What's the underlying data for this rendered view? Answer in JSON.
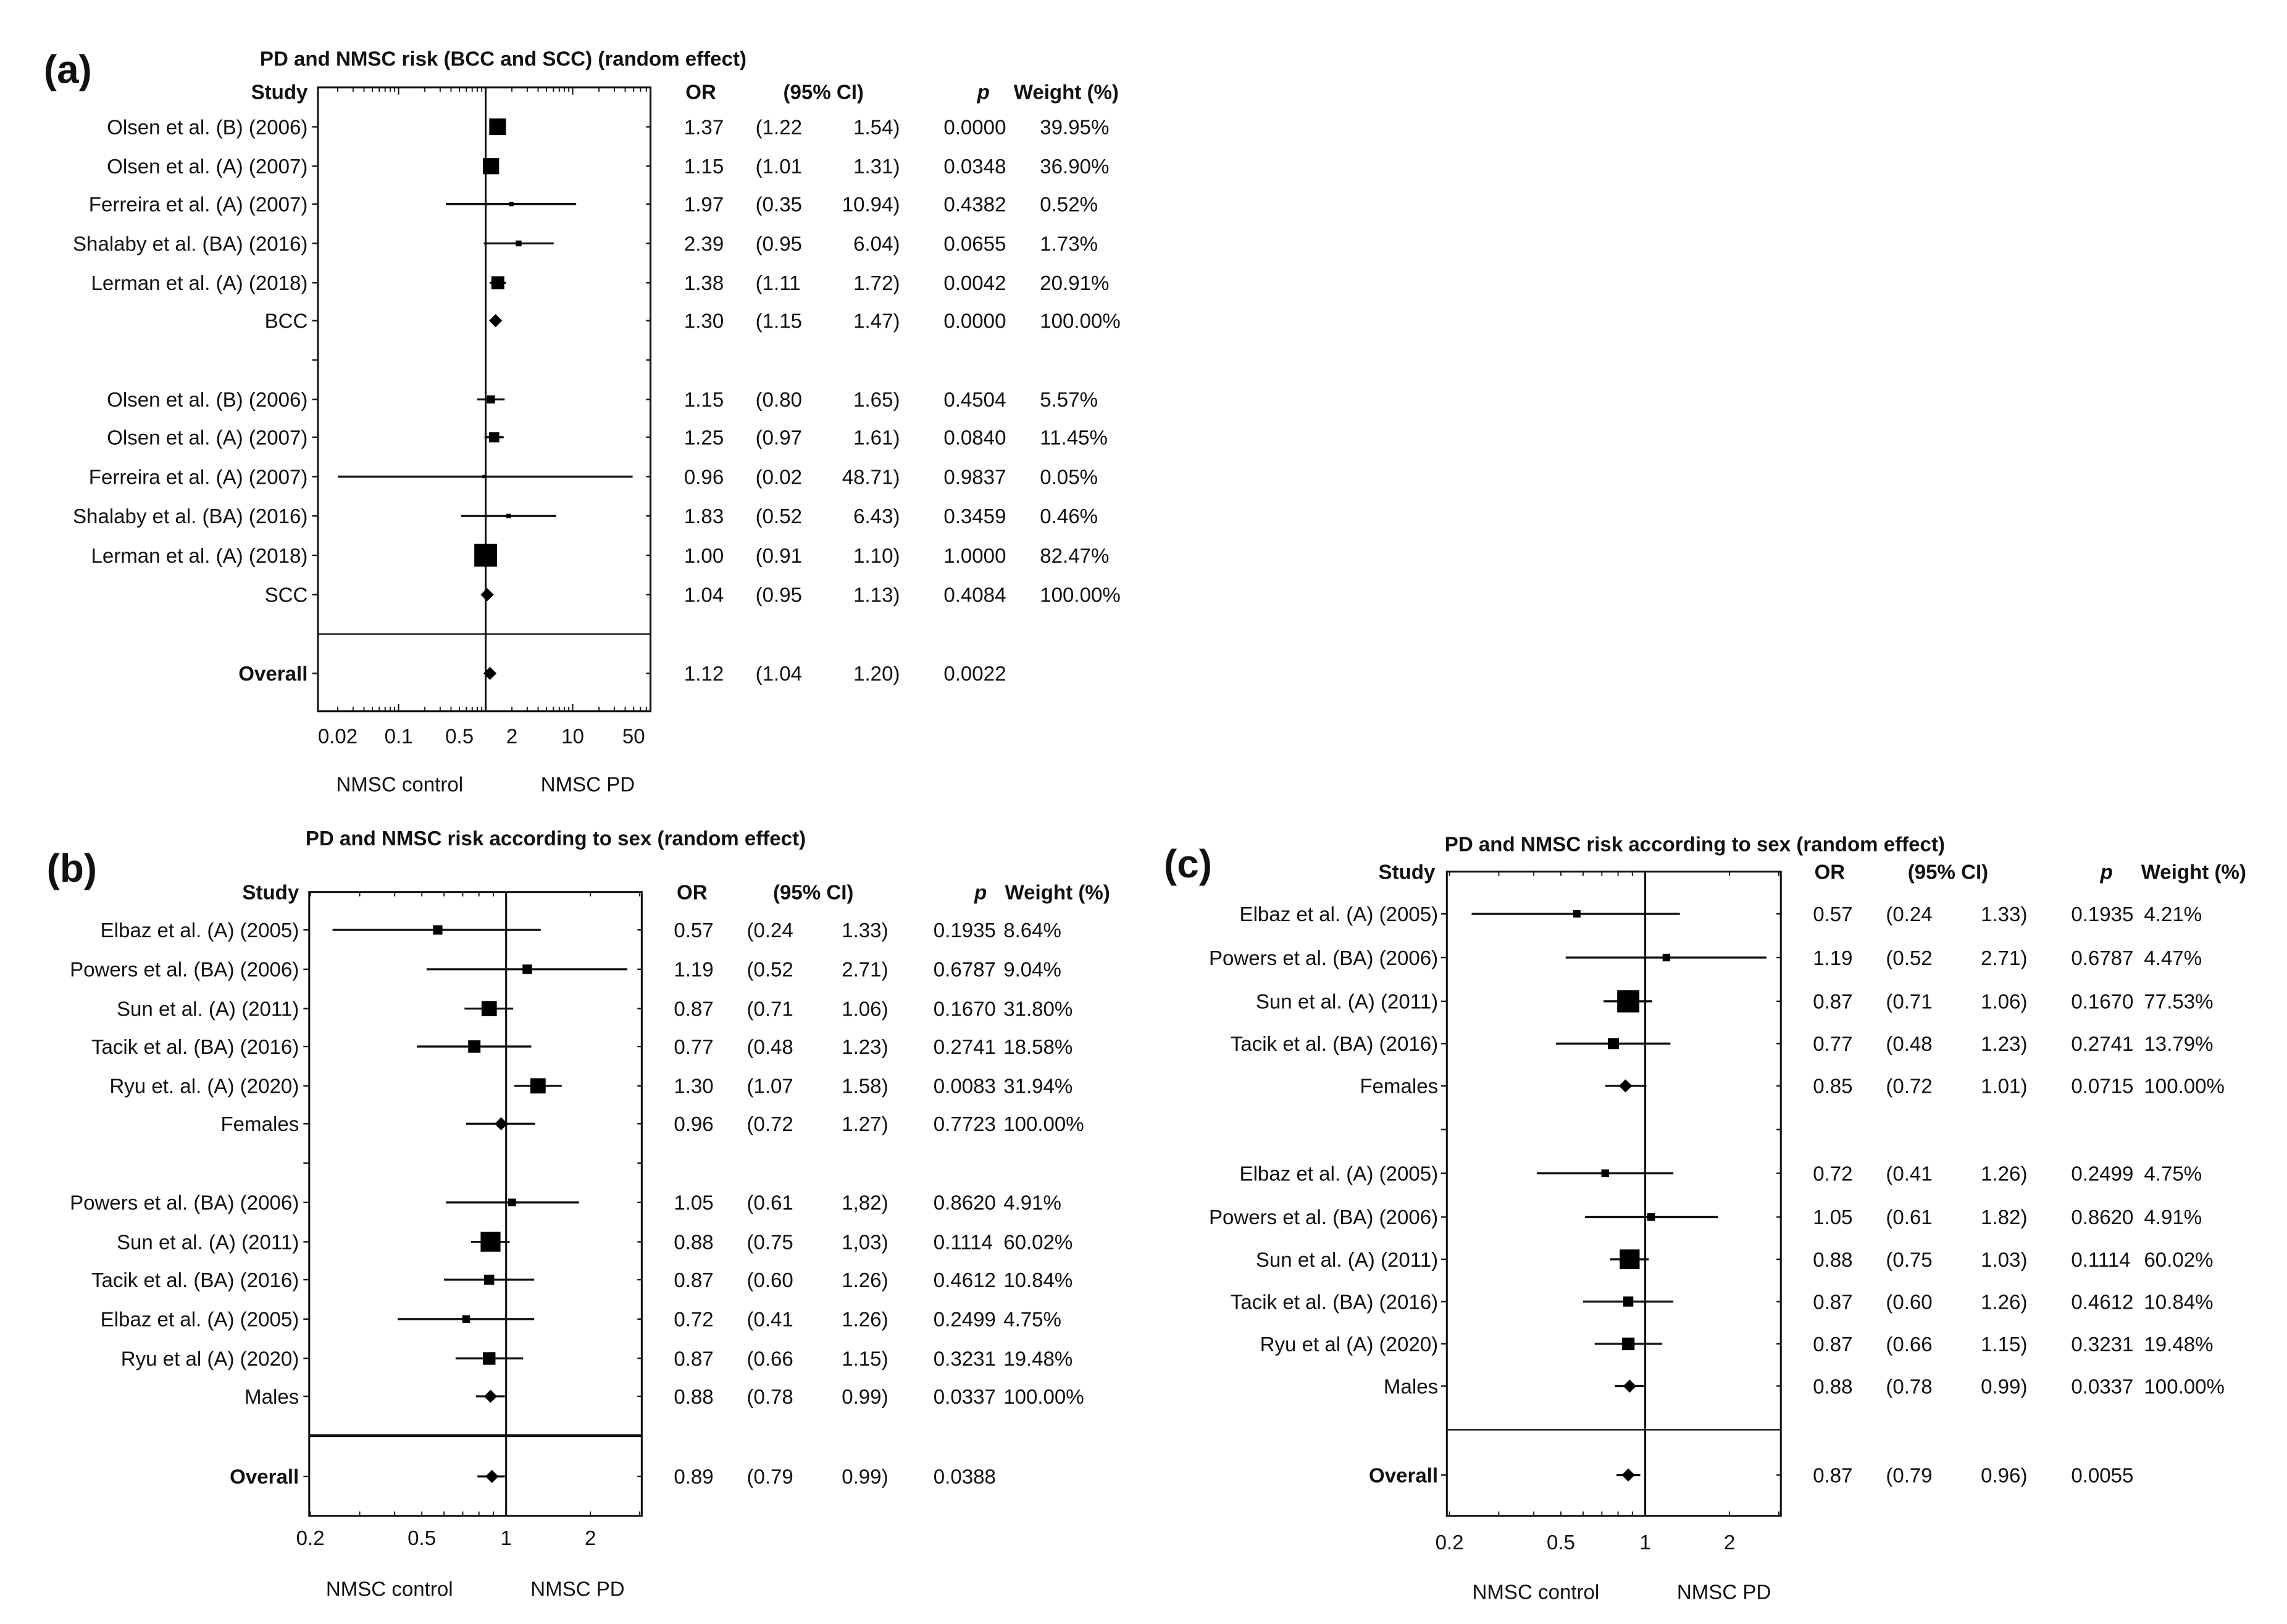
{
  "chart_data": [
    {
      "type": "forest",
      "panel_label": "(a)",
      "title": "PD and NMSC risk (BCC and SCC) (random effect)",
      "headers": {
        "study": "Study",
        "or": "OR",
        "ci": "(95% CI)",
        "p": "p",
        "weight": "Weight (%)"
      },
      "xscale": "log",
      "xlim": [
        0.012,
        80
      ],
      "ticks": [
        "0.02",
        "0.1",
        "0.5",
        "2",
        "10",
        "50"
      ],
      "footer": {
        "left": "NMSC control",
        "right": "NMSC PD"
      },
      "rows": [
        {
          "study": "Olsen et al. (B) (2006)",
          "or": "1.37",
          "lo": "1.22",
          "hi": "1.54",
          "p": "0.0000",
          "weight": "39.95%",
          "kind": "study"
        },
        {
          "study": "Olsen et al. (A) (2007)",
          "or": "1.15",
          "lo": "1.01",
          "hi": "1.31",
          "p": "0.0348",
          "weight": "36.90%",
          "kind": "study"
        },
        {
          "study": "Ferreira et al. (A)  (2007)",
          "or": "1.97",
          "lo": "0.35",
          "hi": "10.94",
          "p": "0.4382",
          "weight": "0.52%",
          "kind": "study"
        },
        {
          "study": "Shalaby et al. (BA) (2016)",
          "or": "2.39",
          "lo": "0.95",
          "hi": "6.04",
          "p": "0.0655",
          "weight": "1.73%",
          "kind": "study"
        },
        {
          "study": "Lerman et al. (A) (2018)",
          "or": "1.38",
          "lo": "1.11",
          "hi": "1.72",
          "p": "0.0042",
          "weight": "20.91%",
          "kind": "study"
        },
        {
          "study": "BCC",
          "or": "1.30",
          "lo": "1.15",
          "hi": "1.47",
          "p": "0.0000",
          "weight": "100.00%",
          "kind": "summary"
        },
        {
          "study": "Olsen et al. (B) (2006)",
          "or": "1.15",
          "lo": "0.80",
          "hi": "1.65",
          "p": "0.4504",
          "weight": "5.57%",
          "kind": "study"
        },
        {
          "study": "Olsen et al. (A) (2007)",
          "or": "1.25",
          "lo": "0.97",
          "hi": "1.61",
          "p": "0.0840",
          "weight": "11.45%",
          "kind": "study"
        },
        {
          "study": "Ferreira et al. (A) (2007)",
          "or": "0.96",
          "lo": "0.02",
          "hi": "48.71",
          "p": "0.9837",
          "weight": "0.05%",
          "kind": "study"
        },
        {
          "study": "Shalaby et al. (BA) (2016)",
          "or": "1.83",
          "lo": "0.52",
          "hi": "6.43",
          "p": "0.3459",
          "weight": "0.46%",
          "kind": "study"
        },
        {
          "study": "Lerman et al. (A) (2018)",
          "or": "1.00",
          "lo": "0.91",
          "hi": "1.10",
          "p": "1.0000",
          "weight": "82.47%",
          "kind": "study"
        },
        {
          "study": "SCC",
          "or": "1.04",
          "lo": "0.95",
          "hi": "1.13",
          "p": "0.4084",
          "weight": "100.00%",
          "kind": "summary"
        },
        {
          "study": "Overall",
          "or": "1.12",
          "lo": "1.04",
          "hi": "1.20",
          "p": "0.0022",
          "weight": "",
          "kind": "overall"
        }
      ]
    },
    {
      "type": "forest",
      "panel_label": "(b)",
      "title": "PD and NMSC risk according to sex (random effect)",
      "headers": {
        "study": "Study",
        "or": "OR",
        "ci": "(95% CI)",
        "p": "p",
        "weight": "Weight (%)"
      },
      "xscale": "log",
      "xlim": [
        0.2,
        3.05
      ],
      "ticks": [
        "0.2",
        "0.5",
        "1",
        "2"
      ],
      "footer": {
        "left": "NMSC control",
        "right": "NMSC PD"
      },
      "rows": [
        {
          "study": "Elbaz et al. (A) (2005)",
          "or": "0.57",
          "lo": "0.24",
          "hi": "1.33",
          "p": "0.1935",
          "weight": "8.64%",
          "kind": "study"
        },
        {
          "study": "Powers et al. (BA) (2006)",
          "or": "1.19",
          "lo": "0.52",
          "hi": "2.71",
          "p": "0.6787",
          "weight": "9.04%",
          "kind": "study"
        },
        {
          "study": "Sun et al. (A) (2011)",
          "or": "0.87",
          "lo": "0.71",
          "hi": "1.06",
          "p": "0.1670",
          "weight": "31.80%",
          "kind": "study"
        },
        {
          "study": "Tacik et al. (BA) (2016)",
          "or": "0.77",
          "lo": "0.48",
          "hi": "1.23",
          "p": "0.2741",
          "weight": "18.58%",
          "kind": "study"
        },
        {
          "study": "Ryu et. al. (A) (2020)",
          "or": "1.30",
          "lo": "1.07",
          "hi": "1.58",
          "p": "0.0083",
          "weight": "31.94%",
          "kind": "study"
        },
        {
          "study": "Females",
          "or": "0.96",
          "lo": "0.72",
          "hi": "1.27",
          "p": "0.7723",
          "weight": "100.00%",
          "kind": "summary"
        },
        {
          "study": "Powers et al. (BA) (2006)",
          "or": "1.05",
          "lo": "0.61",
          "hi": "1,82",
          "p": "0.8620",
          "weight": "4.91%",
          "kind": "study"
        },
        {
          "study": "Sun et al. (A) (2011)",
          "or": "0.88",
          "lo": "0.75",
          "hi": "1,03",
          "p": "0.1114",
          "weight": "60.02%",
          "kind": "study"
        },
        {
          "study": "Tacik et al. (BA) (2016)",
          "or": "0.87",
          "lo": "0.60",
          "hi": "1.26",
          "p": "0.4612",
          "weight": "10.84%",
          "kind": "study"
        },
        {
          "study": "Elbaz et al. (A) (2005)",
          "or": "0.72",
          "lo": "0.41",
          "hi": "1.26",
          "p": "0.2499",
          "weight": "4.75%",
          "kind": "study"
        },
        {
          "study": "Ryu et al (A) (2020)",
          "or": "0.87",
          "lo": "0.66",
          "hi": "1.15",
          "p": "0.3231",
          "weight": "19.48%",
          "kind": "study"
        },
        {
          "study": "Males",
          "or": "0.88",
          "lo": "0.78",
          "hi": "0.99",
          "p": "0.0337",
          "weight": "100.00%",
          "kind": "summary"
        },
        {
          "study": "Overall",
          "or": "0.89",
          "lo": "0.79",
          "hi": "0.99",
          "p": "0.0388",
          "weight": "",
          "kind": "overall"
        }
      ]
    },
    {
      "type": "forest",
      "panel_label": "(c)",
      "title": "PD and NMSC risk according to sex (random effect)",
      "headers": {
        "study": "Study",
        "or": "OR",
        "ci": "(95% CI)",
        "p": "p",
        "weight": "Weight (%)"
      },
      "xscale": "log",
      "xlim": [
        0.2,
        3.05
      ],
      "ticks": [
        "0.2",
        "0.5",
        "1",
        "2"
      ],
      "footer": {
        "left": "NMSC control",
        "right": "NMSC PD"
      },
      "rows": [
        {
          "study": "Elbaz et al. (A) (2005)",
          "or": "0.57",
          "lo": "0.24",
          "hi": "1.33",
          "p": "0.1935",
          "weight": "4.21%",
          "kind": "study"
        },
        {
          "study": "Powers et al. (BA) (2006)",
          "or": "1.19",
          "lo": "0.52",
          "hi": "2.71",
          "p": "0.6787",
          "weight": "4.47%",
          "kind": "study"
        },
        {
          "study": "Sun et al. (A) (2011)",
          "or": "0.87",
          "lo": "0.71",
          "hi": "1.06",
          "p": "0.1670",
          "weight": "77.53%",
          "kind": "study"
        },
        {
          "study": "Tacik et al. (BA) (2016)",
          "or": "0.77",
          "lo": "0.48",
          "hi": "1.23",
          "p": "0.2741",
          "weight": "13.79%",
          "kind": "study"
        },
        {
          "study": "Females",
          "or": "0.85",
          "lo": "0.72",
          "hi": "1.01",
          "p": "0.0715",
          "weight": "100.00%",
          "kind": "summary"
        },
        {
          "study": "Elbaz et al. (A) (2005)",
          "or": "0.72",
          "lo": "0.41",
          "hi": "1.26",
          "p": "0.2499",
          "weight": "4.75%",
          "kind": "study"
        },
        {
          "study": "Powers et al. (BA) (2006)",
          "or": "1.05",
          "lo": "0.61",
          "hi": "1.82",
          "p": "0.8620",
          "weight": "4.91%",
          "kind": "study"
        },
        {
          "study": "Sun et al. (A) (2011)",
          "or": "0.88",
          "lo": "0.75",
          "hi": "1.03",
          "p": "0.1114",
          "weight": "60.02%",
          "kind": "study"
        },
        {
          "study": "Tacik et al. (BA) (2016)",
          "or": "0.87",
          "lo": "0.60",
          "hi": "1.26",
          "p": "0.4612",
          "weight": "10.84%",
          "kind": "study"
        },
        {
          "study": "Ryu et al (A) (2020)",
          "or": "0.87",
          "lo": "0.66",
          "hi": "1.15",
          "p": "0.3231",
          "weight": "19.48%",
          "kind": "study"
        },
        {
          "study": "Males",
          "or": "0.88",
          "lo": "0.78",
          "hi": "0.99",
          "p": "0.0337",
          "weight": "100.00%",
          "kind": "summary"
        },
        {
          "study": "Overall",
          "or": "0.87",
          "lo": "0.79",
          "hi": "0.96",
          "p": "0.0055",
          "weight": "",
          "kind": "overall"
        }
      ]
    }
  ]
}
